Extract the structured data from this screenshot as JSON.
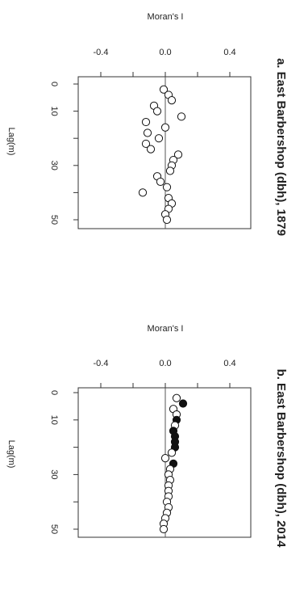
{
  "chart_data": [
    {
      "type": "scatter",
      "title": "a. East Barbershop (dbh), 1879",
      "xlabel": "Moran's I",
      "ylabel": "Lag(m)",
      "xlim": [
        -0.5,
        0.4
      ],
      "ylim": [
        0,
        50
      ],
      "xticks": [
        "-0.4",
        "0.0",
        "0.4"
      ],
      "yticks": [
        "0",
        "10",
        "30",
        "50"
      ],
      "reference_line_x": 0,
      "series": [
        {
          "marker": "open-circle",
          "points": [
            {
              "lag": 2,
              "moran": -0.01
            },
            {
              "lag": 4,
              "moran": 0.02
            },
            {
              "lag": 6,
              "moran": 0.04
            },
            {
              "lag": 8,
              "moran": -0.07
            },
            {
              "lag": 10,
              "moran": -0.05
            },
            {
              "lag": 12,
              "moran": 0.1
            },
            {
              "lag": 14,
              "moran": -0.12
            },
            {
              "lag": 16,
              "moran": 0.0
            },
            {
              "lag": 18,
              "moran": -0.11
            },
            {
              "lag": 20,
              "moran": -0.04
            },
            {
              "lag": 22,
              "moran": -0.12
            },
            {
              "lag": 24,
              "moran": -0.09
            },
            {
              "lag": 26,
              "moran": 0.08
            },
            {
              "lag": 28,
              "moran": 0.05
            },
            {
              "lag": 30,
              "moran": 0.04
            },
            {
              "lag": 32,
              "moran": 0.03
            },
            {
              "lag": 34,
              "moran": -0.05
            },
            {
              "lag": 36,
              "moran": -0.03
            },
            {
              "lag": 38,
              "moran": 0.01
            },
            {
              "lag": 40,
              "moran": -0.14
            },
            {
              "lag": 42,
              "moran": 0.02
            },
            {
              "lag": 44,
              "moran": 0.04
            },
            {
              "lag": 46,
              "moran": 0.02
            },
            {
              "lag": 48,
              "moran": 0.0
            },
            {
              "lag": 50,
              "moran": 0.01
            }
          ]
        }
      ]
    },
    {
      "type": "scatter",
      "title": "b. East Barbershop (dbh), 2014",
      "xlabel": "Moran's I",
      "ylabel": "Lag(m)",
      "xlim": [
        -0.5,
        0.4
      ],
      "ylim": [
        0,
        50
      ],
      "xticks": [
        "-0.4",
        "0.0",
        "0.4"
      ],
      "yticks": [
        "0",
        "10",
        "30",
        "50"
      ],
      "reference_line_x": 0,
      "series": [
        {
          "marker": "mixed",
          "points": [
            {
              "lag": 2,
              "moran": 0.07,
              "filled": false
            },
            {
              "lag": 4,
              "moran": 0.11,
              "filled": true
            },
            {
              "lag": 6,
              "moran": 0.05,
              "filled": false
            },
            {
              "lag": 8,
              "moran": 0.07,
              "filled": false
            },
            {
              "lag": 10,
              "moran": 0.07,
              "filled": true
            },
            {
              "lag": 12,
              "moran": 0.06,
              "filled": false
            },
            {
              "lag": 14,
              "moran": 0.05,
              "filled": true
            },
            {
              "lag": 16,
              "moran": 0.06,
              "filled": true
            },
            {
              "lag": 18,
              "moran": 0.06,
              "filled": true
            },
            {
              "lag": 20,
              "moran": 0.06,
              "filled": true
            },
            {
              "lag": 22,
              "moran": 0.04,
              "filled": false
            },
            {
              "lag": 24,
              "moran": 0.0,
              "filled": false
            },
            {
              "lag": 26,
              "moran": 0.05,
              "filled": true
            },
            {
              "lag": 28,
              "moran": 0.03,
              "filled": false
            },
            {
              "lag": 30,
              "moran": 0.02,
              "filled": false
            },
            {
              "lag": 32,
              "moran": 0.03,
              "filled": false
            },
            {
              "lag": 34,
              "moran": 0.02,
              "filled": false
            },
            {
              "lag": 36,
              "moran": 0.02,
              "filled": false
            },
            {
              "lag": 38,
              "moran": 0.02,
              "filled": false
            },
            {
              "lag": 40,
              "moran": 0.01,
              "filled": false
            },
            {
              "lag": 42,
              "moran": 0.02,
              "filled": false
            },
            {
              "lag": 44,
              "moran": 0.01,
              "filled": false
            },
            {
              "lag": 46,
              "moran": 0.0,
              "filled": false
            },
            {
              "lag": 48,
              "moran": -0.01,
              "filled": false
            },
            {
              "lag": 50,
              "moran": -0.01,
              "filled": false
            }
          ]
        }
      ]
    }
  ]
}
